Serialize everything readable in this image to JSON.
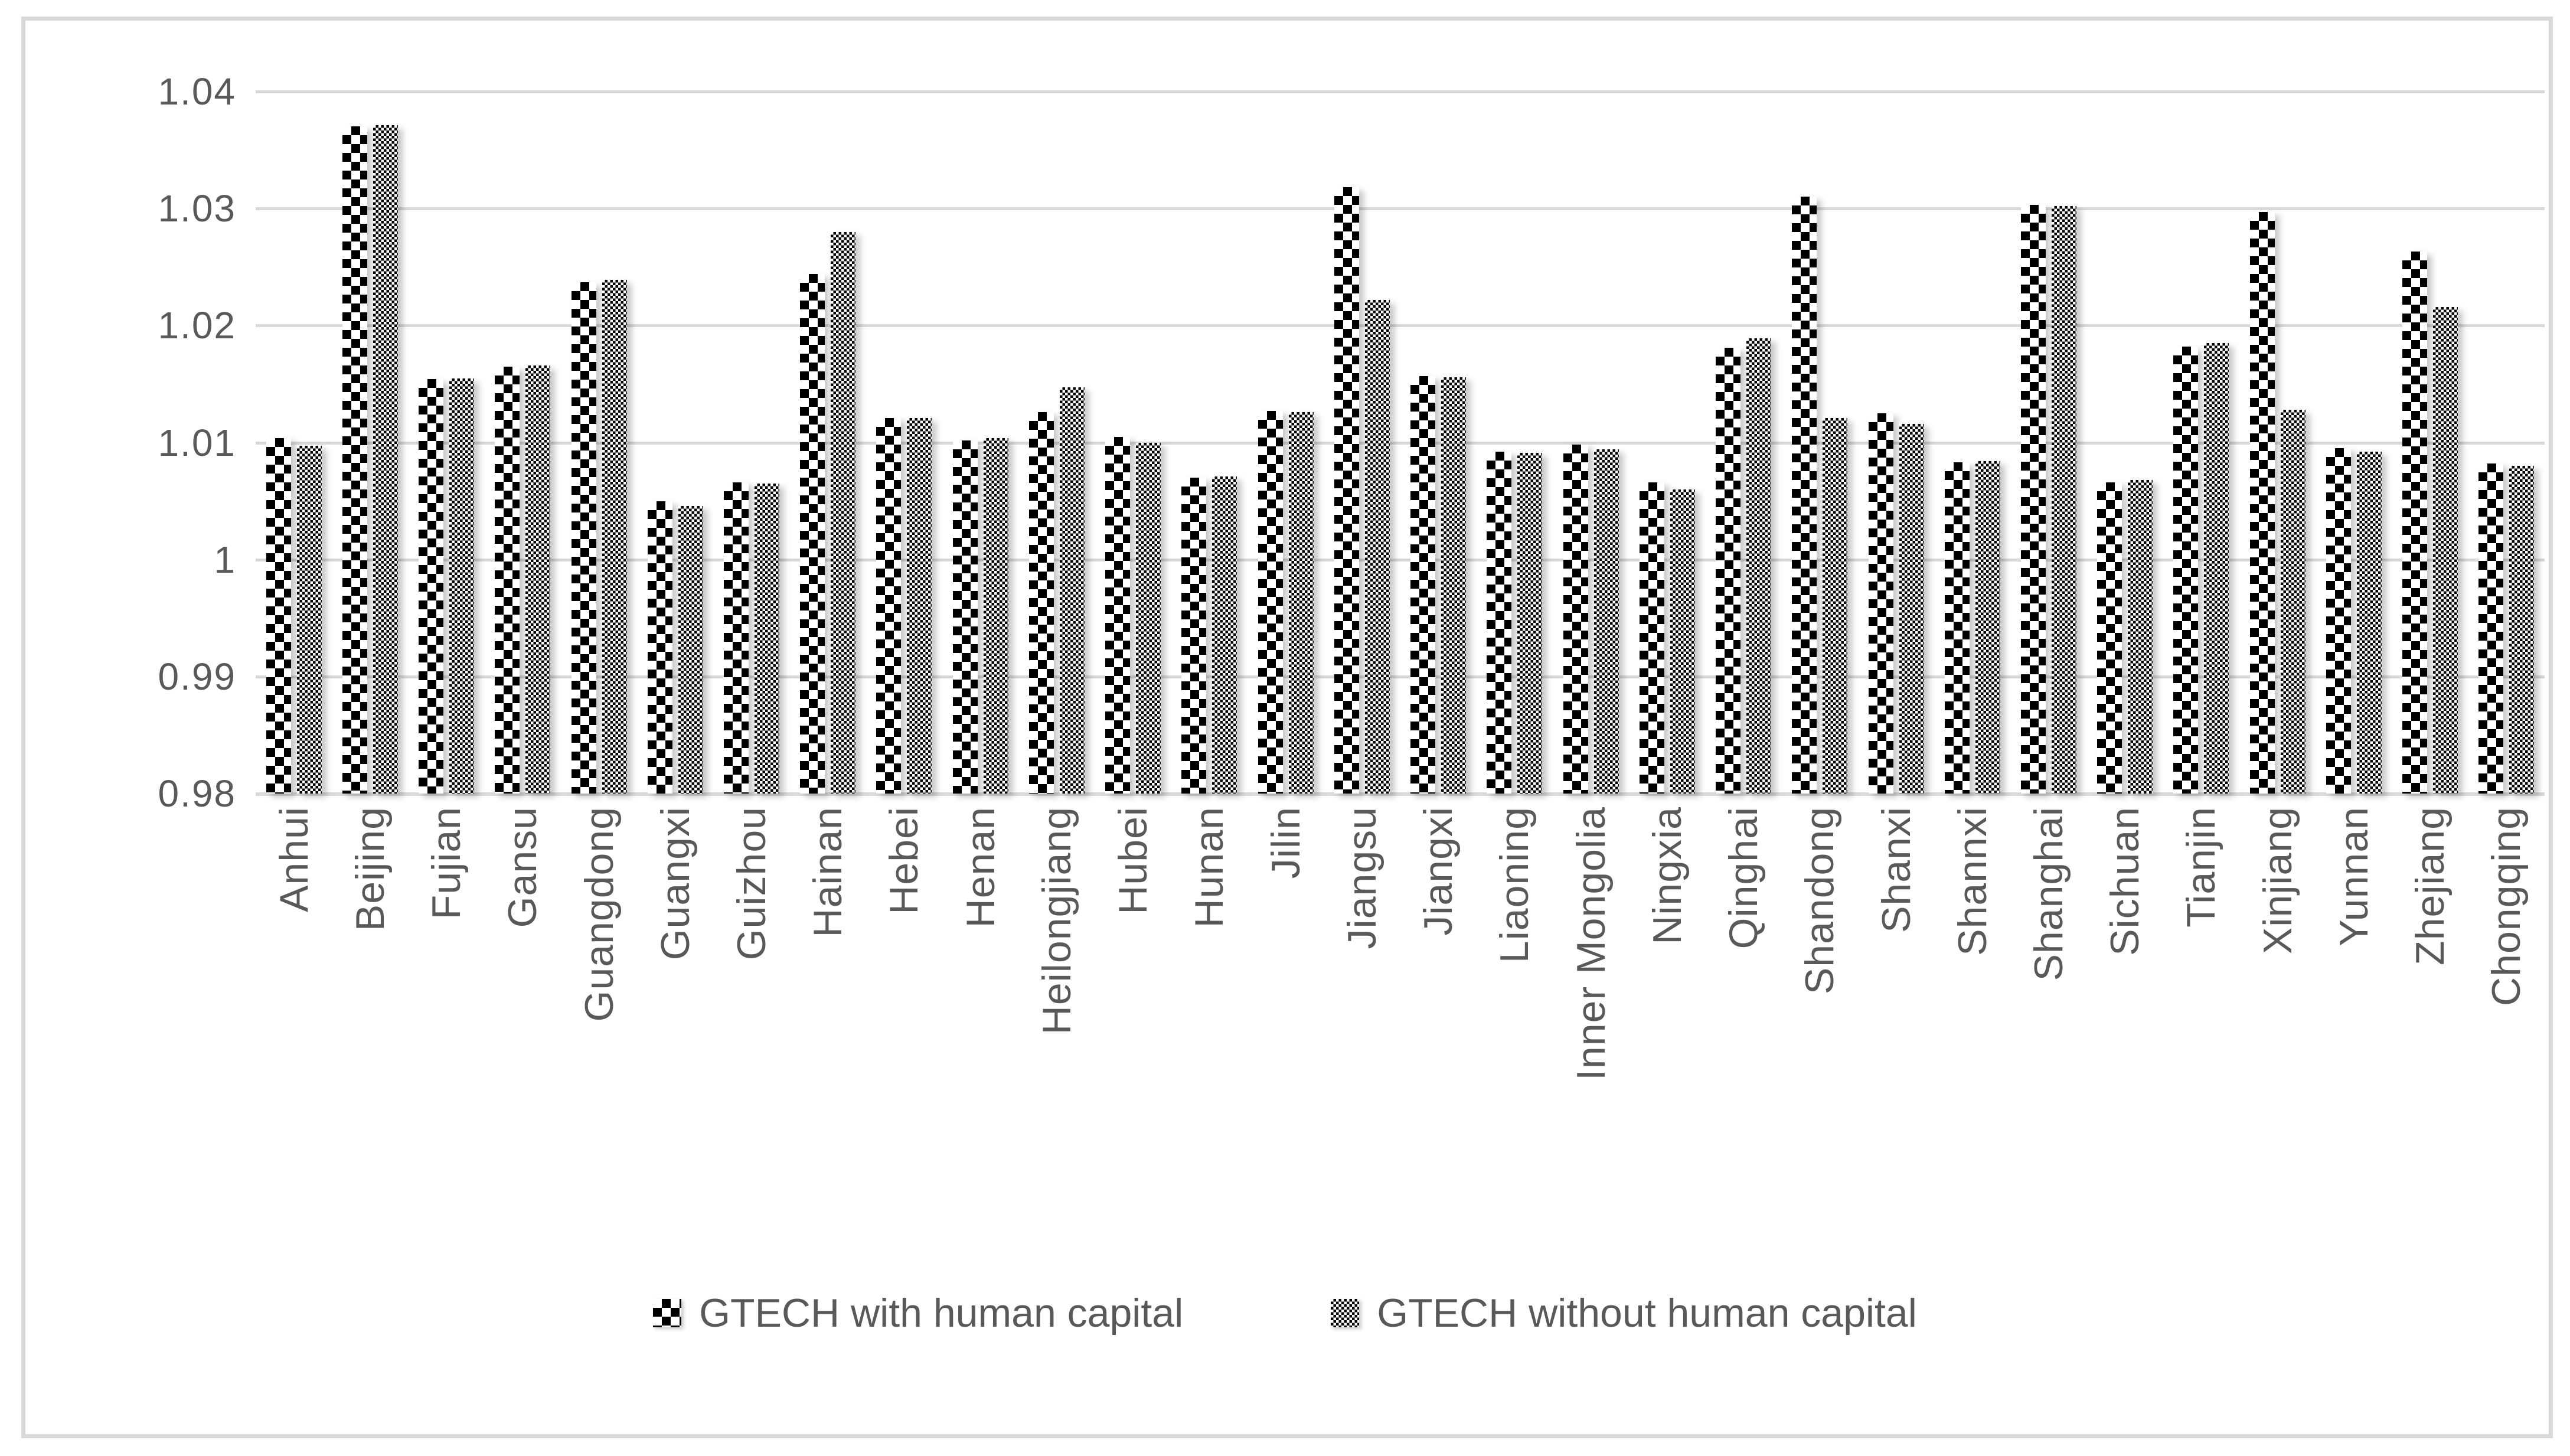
{
  "chart_data": {
    "type": "bar",
    "title": "",
    "xlabel": "",
    "ylabel": "",
    "categories": [
      "Anhui",
      "Beijing",
      "Fujian",
      "Gansu",
      "Guangdong",
      "Guangxi",
      "Guizhou",
      "Hainan",
      "Hebei",
      "Henan",
      "Heilongjiang",
      "Hubei",
      "Hunan",
      "Jilin",
      "Jiangsu",
      "Jiangxi",
      "Liaoning",
      "Inner Mongolia",
      "Ningxia",
      "Qinghai",
      "Shandong",
      "Shanxi",
      "Shannxi",
      "Shanghai",
      "Sichuan",
      "Tianjin",
      "Xinjiang",
      "Yunnan",
      "Zhejiang",
      "Chongqing"
    ],
    "series": [
      {
        "name": "GTECH with human capital",
        "pattern": "coarse-checker",
        "values": [
          1.0104,
          1.037,
          1.0154,
          1.0165,
          1.0237,
          1.005,
          1.0066,
          1.0244,
          1.0121,
          1.0102,
          1.0126,
          1.0105,
          1.007,
          1.0127,
          1.0318,
          1.0157,
          1.0092,
          1.0098,
          1.0066,
          1.0181,
          1.031,
          1.0125,
          1.0083,
          1.0303,
          1.0066,
          1.0182,
          1.0297,
          1.0095,
          1.0263,
          1.0082
        ]
      },
      {
        "name": "GTECH without human capital",
        "pattern": "fine-checker",
        "values": [
          1.0097,
          1.0371,
          1.0155,
          1.0166,
          1.0239,
          1.0046,
          1.0065,
          1.028,
          1.0121,
          1.0104,
          1.0147,
          1.01,
          1.0071,
          1.0126,
          1.0222,
          1.0156,
          1.0091,
          1.0094,
          1.006,
          1.0189,
          1.0121,
          1.0116,
          1.0084,
          1.0302,
          1.0068,
          1.0185,
          1.0128,
          1.0092,
          1.0216,
          1.008
        ]
      }
    ],
    "yticks": [
      {
        "v": 0.98,
        "label": "0.98"
      },
      {
        "v": 0.99,
        "label": "0.99"
      },
      {
        "v": 1.0,
        "label": "1"
      },
      {
        "v": 1.01,
        "label": "1.01"
      },
      {
        "v": 1.02,
        "label": "1.02"
      },
      {
        "v": 1.03,
        "label": "1.03"
      },
      {
        "v": 1.04,
        "label": "1.04"
      }
    ],
    "ylim": [
      0.98,
      1.04
    ],
    "grid": "horizontal",
    "legend_position": "bottom"
  },
  "colors": {
    "text": "#595959",
    "gridline": "#d9d9d9",
    "frame_border": "#d9d9d9",
    "pattern_dark": "#000000",
    "pattern_light": "#ffffff"
  }
}
